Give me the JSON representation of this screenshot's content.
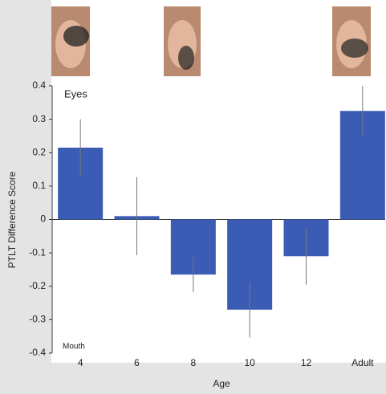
{
  "chart_data": {
    "type": "bar",
    "categories": [
      "4",
      "6",
      "8",
      "10",
      "12",
      "Adult"
    ],
    "values": [
      0.215,
      0.01,
      -0.165,
      -0.27,
      -0.11,
      0.325
    ],
    "errors": [
      0.085,
      0.117,
      0.052,
      0.083,
      0.085,
      0.075
    ],
    "color": "#3a5cb5",
    "ylim": [
      -0.4,
      0.4
    ],
    "yticks": [
      -0.4,
      -0.3,
      -0.2,
      -0.1,
      0,
      0.1,
      0.2,
      0.3,
      0.4
    ],
    "x_label": "Age",
    "y_label": "PTLT Difference Score",
    "annotations": [
      "Eyes",
      "Mouth"
    ]
  }
}
